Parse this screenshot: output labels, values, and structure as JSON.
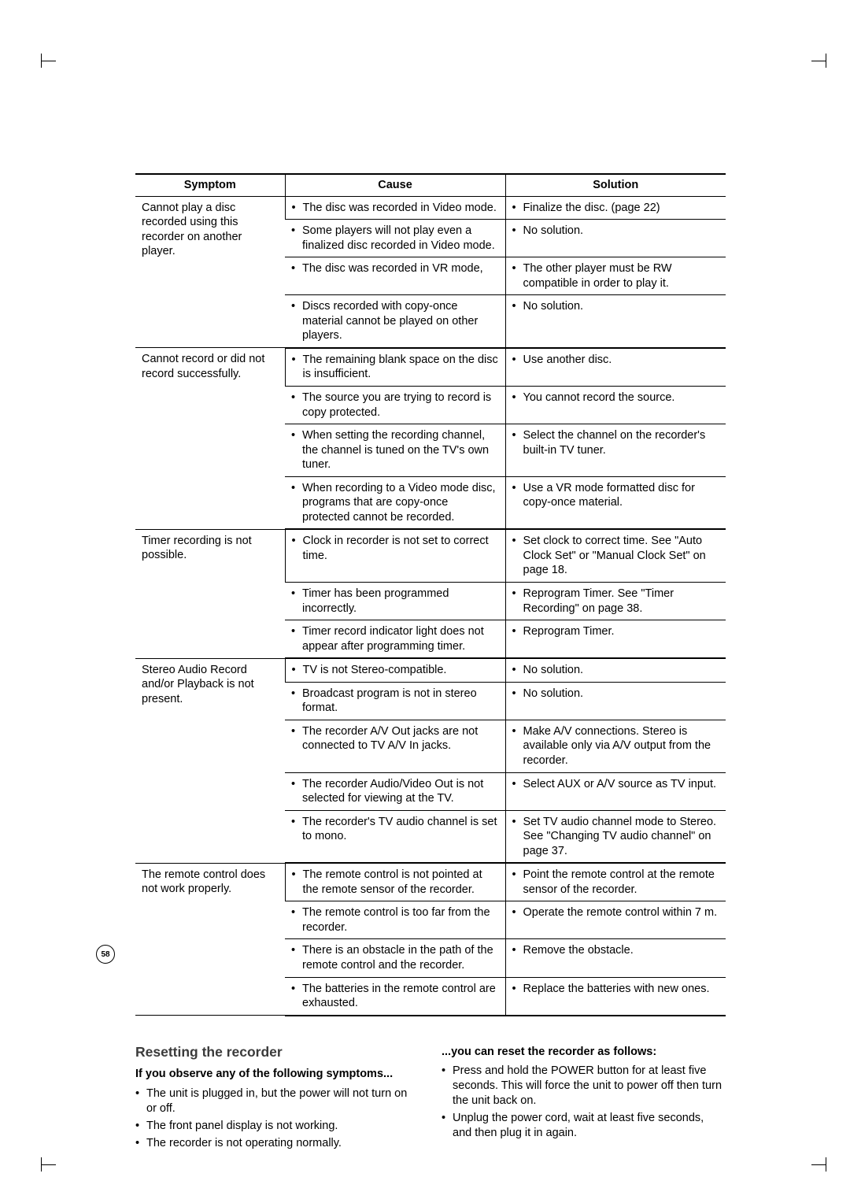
{
  "table": {
    "headers": {
      "symptom": "Symptom",
      "cause": "Cause",
      "solution": "Solution"
    },
    "groups": [
      {
        "symptom": "Cannot play a disc recorded using this recorder on another player.",
        "rows": [
          {
            "cause": "The disc was recorded in Video mode.",
            "solution": "Finalize the disc. (page 22)"
          },
          {
            "cause": "Some players will not play even a finalized disc recorded in Video mode.",
            "solution": "No solution."
          },
          {
            "cause": "The disc was recorded in VR mode,",
            "solution": "The other player must be RW compatible in order to play it."
          },
          {
            "cause": "Discs recorded with copy-once material cannot be played on other players.",
            "solution": "No solution."
          }
        ]
      },
      {
        "symptom": "Cannot record or did not record successfully.",
        "rows": [
          {
            "cause": "The remaining blank space on the disc is insufficient.",
            "solution": "Use another disc."
          },
          {
            "cause": "The source you are trying to record is copy protected.",
            "solution": "You cannot record the source."
          },
          {
            "cause": "When setting the recording channel, the channel is tuned on the TV's own tuner.",
            "solution": "Select the channel on the recorder's built-in TV tuner."
          },
          {
            "cause": "When recording to a Video mode disc, programs that are copy-once protected cannot be recorded.",
            "solution": "Use a VR mode formatted disc for copy-once material."
          }
        ]
      },
      {
        "symptom": "Timer recording is not possible.",
        "rows": [
          {
            "cause": "Clock in recorder is not set to correct time.",
            "solution": "Set clock to correct time. See \"Auto Clock Set\" or \"Manual Clock Set\" on page 18."
          },
          {
            "cause": "Timer has been programmed incorrectly.",
            "solution": "Reprogram Timer. See \"Timer Recording\" on page 38."
          },
          {
            "cause": "Timer record indicator light does not appear after programming timer.",
            "solution": "Reprogram Timer."
          }
        ]
      },
      {
        "symptom": "Stereo Audio Record and/or Playback is not present.",
        "rows": [
          {
            "cause": "TV is not Stereo-compatible.",
            "solution": "No solution."
          },
          {
            "cause": "Broadcast program is not in stereo format.",
            "solution": "No solution."
          },
          {
            "cause": "The recorder A/V Out jacks are not connected to TV A/V In jacks.",
            "solution": "Make A/V connections. Stereo is available only via A/V output from the recorder."
          },
          {
            "cause": "The recorder Audio/Video Out is not selected for viewing at the TV.",
            "solution": "Select AUX or A/V source as TV input."
          },
          {
            "cause": "The recorder's TV audio channel is set to mono.",
            "solution": "Set TV audio channel mode to Stereo. See \"Changing TV audio channel\" on page 37."
          }
        ]
      },
      {
        "symptom": "The remote control does not work properly.",
        "rows": [
          {
            "cause": "The remote control is not pointed at the remote sensor of the recorder.",
            "solution": "Point the remote control at the remote sensor of the recorder."
          },
          {
            "cause": "The remote control is too far from the recorder.",
            "solution": "Operate the remote control within 7 m."
          },
          {
            "cause": "There is an obstacle in the path of the remote control and the recorder.",
            "solution": "Remove the obstacle."
          },
          {
            "cause": "The batteries in the remote control are exhausted.",
            "solution": "Replace the batteries with new ones."
          }
        ]
      }
    ]
  },
  "reset": {
    "title": "Resetting the recorder",
    "left_sub": "If you observe any of the following symptoms...",
    "left_items": [
      "The unit is plugged in, but the power will not turn on or off.",
      "The front panel display is not working.",
      "The recorder is not operating normally."
    ],
    "right_sub": "...you can reset the recorder as follows:",
    "right_items": [
      "Press and hold the POWER button for at least five seconds. This will force the unit to power off then turn the unit back on.",
      "Unplug the power cord, wait at least five seconds, and then plug it in again."
    ]
  },
  "page_number": "58"
}
